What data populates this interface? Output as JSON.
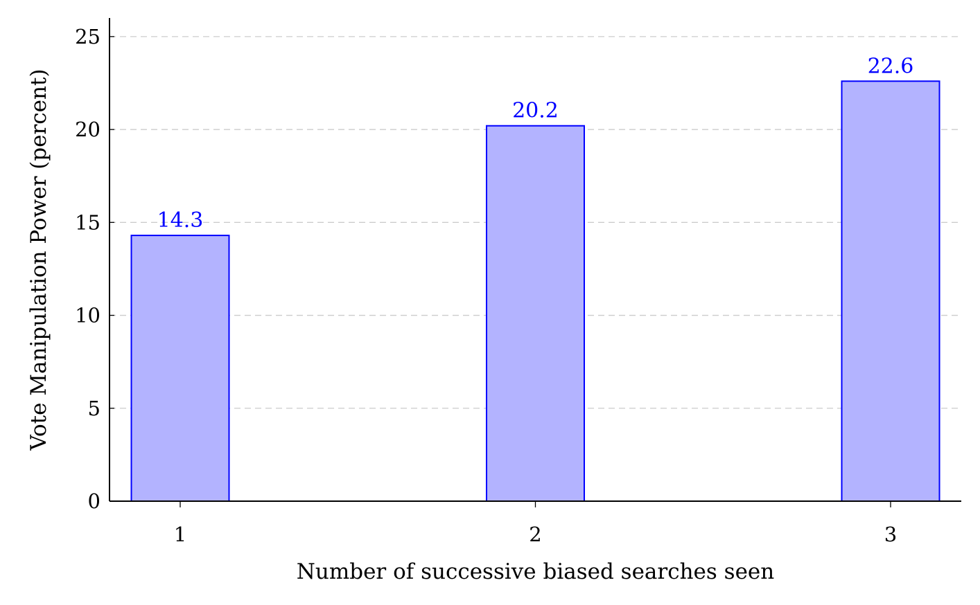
{
  "chart_data": {
    "type": "bar",
    "title": "",
    "xlabel": "Number of successive biased searches seen",
    "ylabel": "Vote Manipulation Power (percent)",
    "categories": [
      "1",
      "2",
      "3"
    ],
    "values": [
      14.3,
      20.2,
      22.6
    ],
    "data_labels": [
      "14.3",
      "20.2",
      "22.6"
    ],
    "ylim": [
      0,
      26
    ],
    "yticks": [
      "0",
      "5",
      "10",
      "15",
      "20",
      "25"
    ],
    "grid": "horizontal-dashed",
    "legend": "none"
  },
  "colors": {
    "bar_fill": "#b3b3ff",
    "bar_stroke": "#0000ff",
    "label": "#0000ff",
    "grid": "#cccccc",
    "axis": "#000000"
  }
}
